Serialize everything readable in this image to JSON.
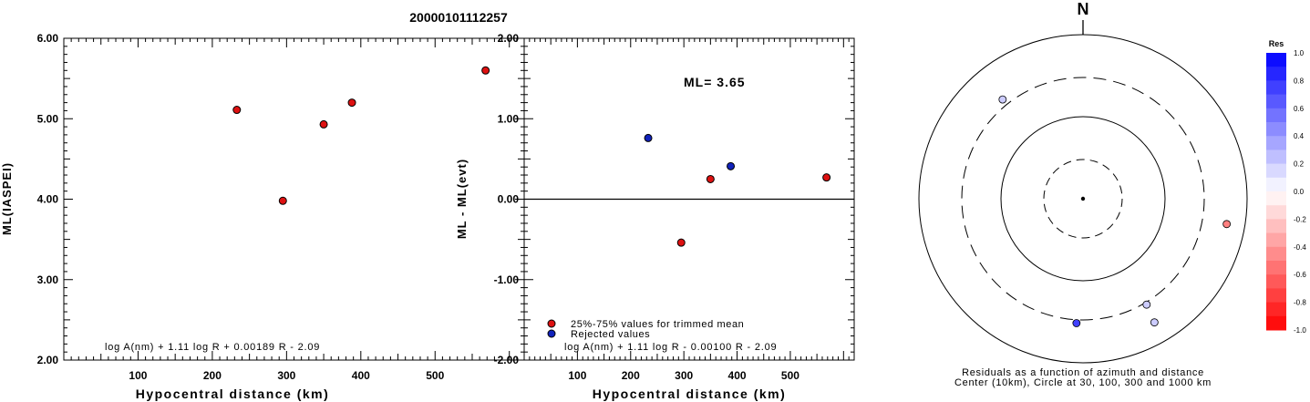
{
  "title": "20000101112257",
  "chart_data": [
    {
      "type": "scatter",
      "ylabel": "ML(IASPEI)",
      "xlabel": "Hypocentral distance (km)",
      "xlim": [
        0,
        620
      ],
      "ylim": [
        2.0,
        6.0
      ],
      "x_tick_labels": [
        "100",
        "200",
        "300",
        "400",
        "500"
      ],
      "y_tick_labels": [
        "6.00",
        "5.00",
        "4.00",
        "3.00",
        "2.00"
      ],
      "formula": "log A(nm) + 1.11 log R + 0.00189 R - 2.09",
      "points": [
        {
          "x": 233,
          "y": 5.11,
          "status": "used"
        },
        {
          "x": 295,
          "y": 3.98,
          "status": "used"
        },
        {
          "x": 350,
          "y": 4.93,
          "status": "used"
        },
        {
          "x": 388,
          "y": 5.2,
          "status": "used"
        },
        {
          "x": 568,
          "y": 5.6,
          "status": "used"
        }
      ],
      "grid": false,
      "colors": {
        "used": "#dd1111"
      }
    },
    {
      "type": "scatter",
      "ylabel": "ML - ML(evt)",
      "xlabel": "Hypocentral distance (km)",
      "xlim": [
        0,
        620
      ],
      "ylim": [
        -2.0,
        2.0
      ],
      "x_tick_labels": [
        "100",
        "200",
        "300",
        "400",
        "500"
      ],
      "y_tick_labels": [
        "2.00",
        "1.00",
        "0.00",
        "-1.00",
        "-2.00"
      ],
      "reference_line_y": 0,
      "annotation": "ML= 3.65",
      "formula": "log A(nm) + 1.11 log R - 0.00100 R - 2.09",
      "legend": [
        {
          "label": "25%-75% values for trimmed mean",
          "color": "#dd1111"
        },
        {
          "label": "Rejected values",
          "color": "#1122bb"
        }
      ],
      "legend_position": "bottom-left",
      "points": [
        {
          "x": 233,
          "y": 0.76,
          "status": "rejected"
        },
        {
          "x": 295,
          "y": -0.54,
          "status": "used"
        },
        {
          "x": 350,
          "y": 0.25,
          "status": "used"
        },
        {
          "x": 388,
          "y": 0.41,
          "status": "rejected"
        },
        {
          "x": 568,
          "y": 0.27,
          "status": "used"
        }
      ],
      "grid": false,
      "colors": {
        "used": "#dd1111",
        "rejected": "#1122bb"
      }
    },
    {
      "type": "polar-scatter",
      "north_label": "N",
      "caption_line1": "Residuals as a function of azimuth and distance",
      "caption_line2": "Center (10km), Circle at 30, 100, 300 and 1000 km",
      "rings": [
        {
          "distance_km": 30,
          "style": "dashed"
        },
        {
          "distance_km": 100,
          "style": "solid"
        },
        {
          "distance_km": 300,
          "style": "dashed"
        },
        {
          "distance_km": 1000,
          "style": "solid"
        }
      ],
      "points": [
        {
          "azimuth_deg": 321,
          "distance_km": 360,
          "residual": 0.2
        },
        {
          "azimuth_deg": 100,
          "distance_km": 600,
          "residual": -0.5
        },
        {
          "azimuth_deg": 149,
          "distance_km": 320,
          "residual": 0.2
        },
        {
          "azimuth_deg": 183,
          "distance_km": 330,
          "residual": 0.75
        },
        {
          "azimuth_deg": 150,
          "distance_km": 550,
          "residual": 0.2
        }
      ],
      "colorbar": {
        "title": "Res",
        "labels": [
          "1.0",
          "0.8",
          "0.6",
          "0.4",
          "0.2",
          "0.0",
          "-0.2",
          "-0.4",
          "-0.6",
          "-0.8",
          "-1.0"
        ],
        "positive_color": "#0000ff",
        "negative_color": "#ff0000",
        "zero_color": "#ffffff"
      }
    }
  ]
}
